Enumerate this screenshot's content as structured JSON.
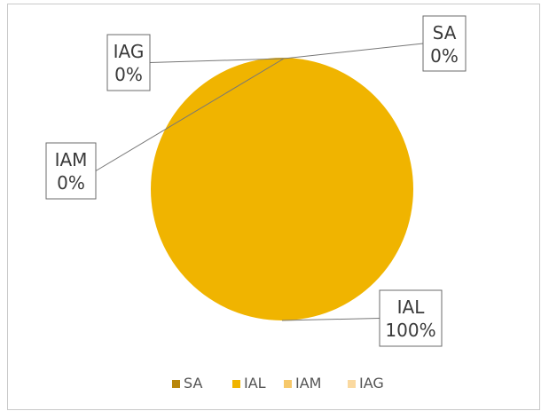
{
  "chart_data": {
    "type": "pie",
    "categories": [
      "SA",
      "IAL",
      "IAM",
      "IAG"
    ],
    "values": [
      0,
      100,
      0,
      0
    ],
    "percent_labels": [
      "0%",
      "100%",
      "0%",
      "0%"
    ],
    "colors": [
      "#B8860B",
      "#F0B400",
      "#F6C86A",
      "#FAD9A0"
    ],
    "title": "",
    "legend_position": "bottom",
    "data_labels": true
  }
}
